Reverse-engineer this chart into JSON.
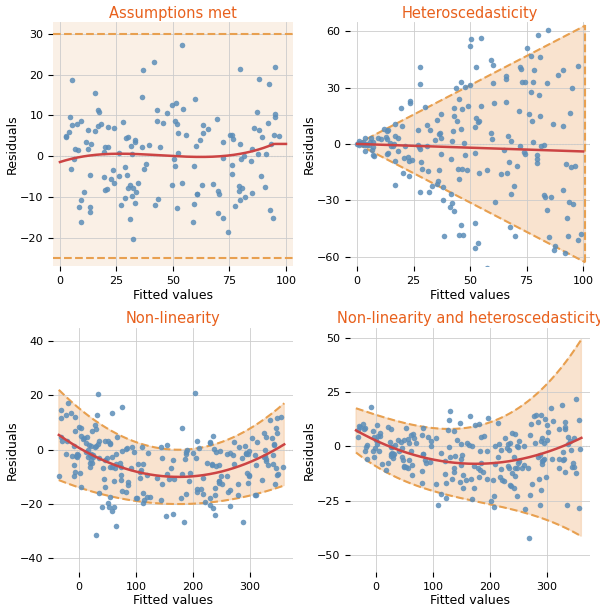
{
  "titles": [
    "Assumptions met",
    "Heteroscedasticity",
    "Non-linearity",
    "Non-linearity and heteroscedasticity"
  ],
  "title_color": "#E8601C",
  "dot_color": "#5B8DB8",
  "line_color": "#CC4444",
  "region_fill": "#F5C9A0",
  "region_edge": "#E8A050",
  "bg_color_warm": "#FAF0E6",
  "bg_color_white": "#FFFFFF",
  "grid_color": "#CCCCCC",
  "zero_line_color": "#BBBBBB",
  "dot_alpha": 0.85,
  "region_alpha": 0.5
}
